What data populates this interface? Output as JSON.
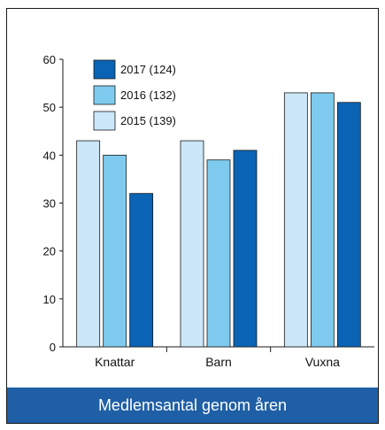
{
  "caption": "Medlemsantal genom åren",
  "colors": {
    "series_2017": "#0a63b4",
    "series_2016": "#7ecbef",
    "series_2015": "#cbe7f8",
    "bar_outline": "#1a1a1a",
    "caption_bg": "#1f5fa6"
  },
  "chart_data": {
    "type": "bar",
    "title": "",
    "xlabel": "",
    "ylabel": "",
    "categories": [
      "Knattar",
      "Barn",
      "Vuxna"
    ],
    "ylim": [
      0,
      60
    ],
    "yticks": [
      0,
      10,
      20,
      30,
      40,
      50,
      60
    ],
    "grid": false,
    "legend_position": "top-left",
    "series": [
      {
        "name": "2015 (139)",
        "values": [
          43,
          43,
          53
        ]
      },
      {
        "name": "2016 (132)",
        "values": [
          40,
          39,
          53
        ]
      },
      {
        "name": "2017 (124)",
        "values": [
          32,
          41,
          51
        ]
      }
    ],
    "legend_order": [
      "2017 (124)",
      "2016 (132)",
      "2015 (139)"
    ]
  }
}
